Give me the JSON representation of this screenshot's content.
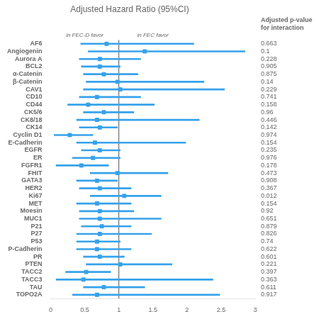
{
  "chart_data": {
    "type": "forest",
    "title": "Adjusted Hazard Ratio (95%CI)",
    "subtitle": [
      "in FEC-D favor",
      "in FEC favor"
    ],
    "column_header": [
      "Adjusted p-value",
      "for interaction"
    ],
    "categories": [
      "AF6",
      "Angiogenin",
      "Aurora A",
      "BCL2",
      "α-Catenin",
      "β-Catenin",
      "CAV1",
      "CD10",
      "CD44",
      "CK5/6",
      "CK8/18",
      "CK14",
      "Cyclin D1",
      "E-Cadherin",
      "EGFR",
      "ER",
      "FGFR1",
      "FHIT",
      "GATA3",
      "HER2",
      "Ki67",
      "MET",
      "Moesin",
      "MUC1",
      "P21",
      "P27",
      "P53",
      "P-Cadherin",
      "PR",
      "PTEN",
      "TACC2",
      "TACC3",
      "TAU",
      "TOPO2A"
    ],
    "values": [
      0.82,
      1.38,
      0.72,
      0.72,
      0.78,
      0.98,
      1.02,
      0.68,
      0.55,
      0.78,
      0.68,
      0.72,
      0.28,
      0.65,
      0.72,
      0.62,
      0.45,
      0.98,
      0.68,
      0.72,
      1.08,
      0.68,
      0.72,
      0.72,
      0.75,
      0.72,
      0.68,
      0.68,
      0.72,
      1.02,
      0.52,
      0.48,
      0.78,
      0.68
    ],
    "ci_low": [
      0.44,
      0.55,
      0.42,
      0.45,
      0.48,
      0.52,
      0.48,
      0.42,
      0.25,
      0.48,
      0.38,
      0.42,
      0.05,
      0.38,
      0.45,
      0.32,
      0.08,
      0.58,
      0.38,
      0.42,
      0.58,
      0.38,
      0.42,
      0.42,
      0.45,
      0.38,
      0.38,
      0.38,
      0.48,
      0.52,
      0.22,
      0.08,
      0.48,
      0.32
    ],
    "ci_high": [
      2.1,
      2.85,
      1.32,
      1.02,
      1.28,
      2.25,
      2.55,
      1.32,
      1.52,
      1.22,
      2.18,
      0.98,
      0.62,
      1.98,
      1.02,
      1.02,
      0.85,
      1.72,
      0.98,
      1.18,
      1.62,
      1.18,
      1.22,
      1.62,
      1.18,
      1.48,
      1.02,
      1.18,
      1.08,
      1.78,
      0.88,
      2.38,
      1.38,
      2.48
    ],
    "p_values": [
      "0.663",
      "0.1",
      "0.228",
      "0.905",
      "0.875",
      "0.14",
      "0.229",
      "0.741",
      "0.158",
      "0.96",
      "0.446",
      "0.142",
      "0.974",
      "0.154",
      "0.235",
      "0.976",
      "0.178",
      "0.473",
      "0.908",
      "0.367",
      "0.012",
      "0.154",
      "0.92",
      "0.651",
      "0.879",
      "0.826",
      "0.74",
      "0.622",
      "0.601",
      "0.221",
      "0.397",
      "0.363",
      "0.611",
      "0.917"
    ],
    "reference_line": 1.0,
    "color": "#36a2eb",
    "xlim": [
      0,
      3
    ],
    "xticks": [
      0,
      0.5,
      1,
      1.5,
      2,
      2.5,
      3
    ],
    "grid": false
  }
}
